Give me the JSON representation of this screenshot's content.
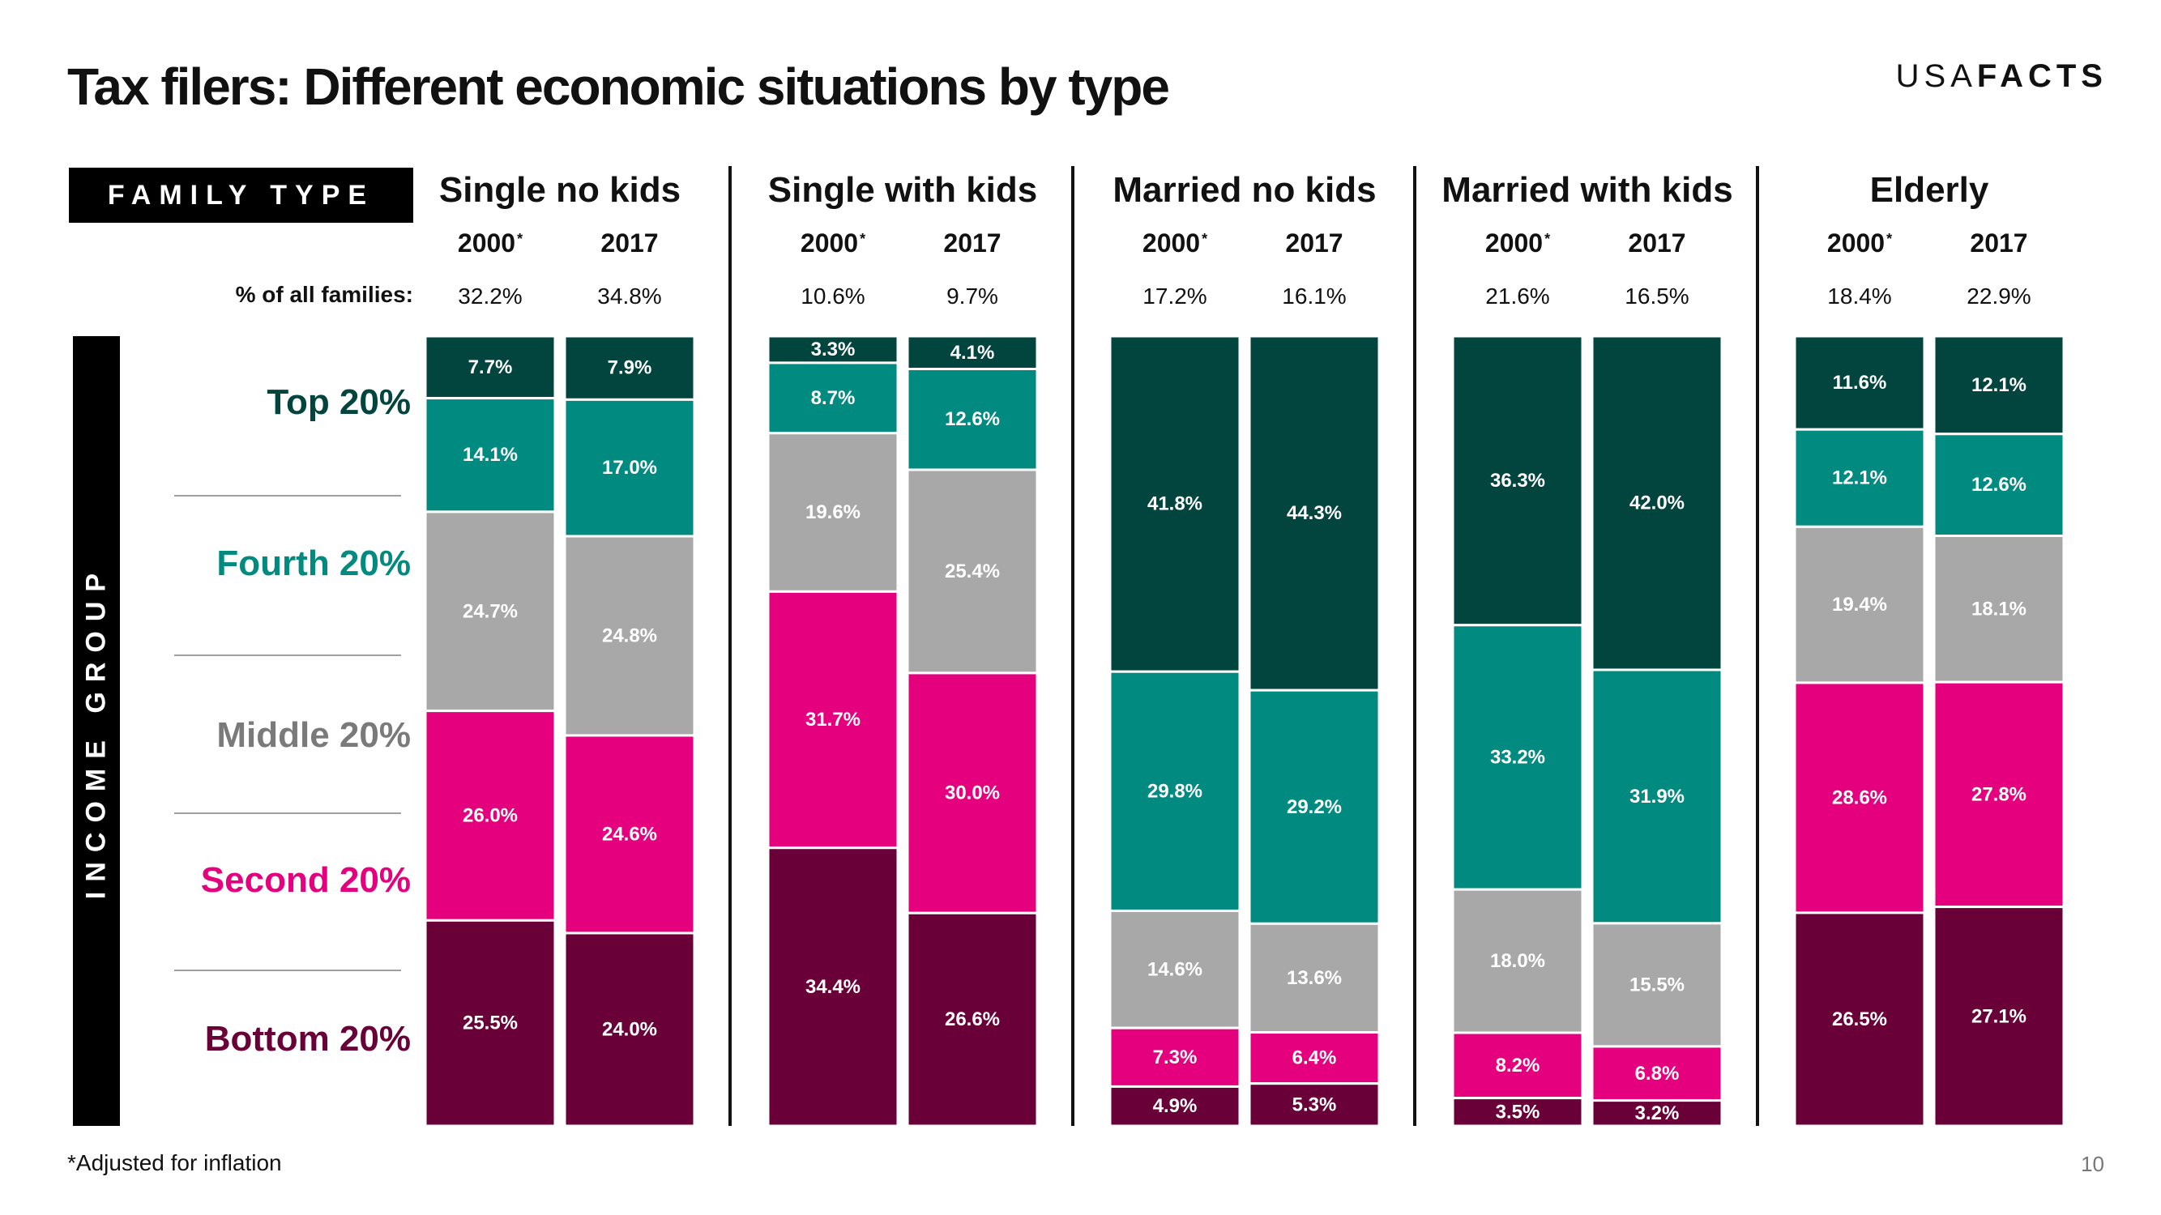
{
  "title": "Tax filers: Different economic situations by type",
  "brand": {
    "light": "USA",
    "bold": "FACTS"
  },
  "family_type_label": "FAMILY TYPE",
  "income_group_label": "INCOME GROUP",
  "share_row_label": "% of all families:",
  "footnote": "*Adjusted for inflation",
  "page_number": "10",
  "income_groups": [
    {
      "label": "Top 20%",
      "color": "#02443e"
    },
    {
      "label": "Fourth 20%",
      "color": "#008a80"
    },
    {
      "label": "Middle 20%",
      "color": "#a8a8a8"
    },
    {
      "label": "Second 20%",
      "color": "#e5007e"
    },
    {
      "label": "Bottom 20%",
      "color": "#690038"
    }
  ],
  "label_colors": [
    "#02443e",
    "#008a80",
    "#7a7a7a",
    "#e5007e",
    "#690038"
  ],
  "chart_data": {
    "type": "bar",
    "stacked": true,
    "normalized": true,
    "series_order": [
      "Top 20%",
      "Fourth 20%",
      "Middle 20%",
      "Second 20%",
      "Bottom 20%"
    ],
    "groups": [
      {
        "name": "Single no kids",
        "bars": [
          {
            "year": "2000",
            "asterisk": "*",
            "share": "32.2%",
            "values": [
              7.7,
              14.1,
              24.7,
              26.0,
              25.5
            ]
          },
          {
            "year": "2017",
            "asterisk": "",
            "share": "34.8%",
            "values": [
              7.9,
              17.0,
              24.8,
              24.6,
              24.0
            ]
          }
        ]
      },
      {
        "name": "Single with kids",
        "bars": [
          {
            "year": "2000",
            "asterisk": "*",
            "share": "10.6%",
            "values": [
              3.3,
              8.7,
              19.6,
              31.7,
              34.4
            ]
          },
          {
            "year": "2017",
            "asterisk": "",
            "share": "9.7%",
            "values": [
              4.1,
              12.6,
              25.4,
              30.0,
              26.6
            ]
          }
        ]
      },
      {
        "name": "Married no kids",
        "bars": [
          {
            "year": "2000",
            "asterisk": "*",
            "share": "17.2%",
            "values": [
              41.8,
              29.8,
              14.6,
              7.3,
              4.9
            ]
          },
          {
            "year": "2017",
            "asterisk": "",
            "share": "16.1%",
            "values": [
              44.3,
              29.2,
              13.6,
              6.4,
              5.3
            ]
          }
        ]
      },
      {
        "name": "Married with kids",
        "bars": [
          {
            "year": "2000",
            "asterisk": "*",
            "share": "21.6%",
            "values": [
              36.3,
              33.2,
              18.0,
              8.2,
              3.5
            ]
          },
          {
            "year": "2017",
            "asterisk": "",
            "share": "16.5%",
            "values": [
              42.0,
              31.9,
              15.5,
              6.8,
              3.2
            ]
          }
        ]
      },
      {
        "name": "Elderly",
        "bars": [
          {
            "year": "2000",
            "asterisk": "*",
            "share": "18.4%",
            "values": [
              11.6,
              12.1,
              19.4,
              28.6,
              26.5
            ]
          },
          {
            "year": "2017",
            "asterisk": "",
            "share": "22.9%",
            "values": [
              12.1,
              12.6,
              18.1,
              27.8,
              27.1
            ]
          }
        ]
      }
    ]
  }
}
